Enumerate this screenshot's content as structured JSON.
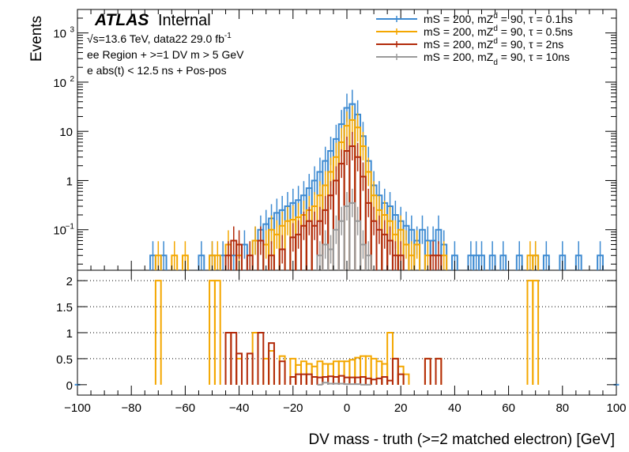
{
  "chart_data": [
    {
      "type": "line",
      "role": "top-panel",
      "ylabel": "Events",
      "yscale": "log",
      "ylim": [
        0.015,
        3000
      ],
      "y_ticks": [
        {
          "v": 0.1,
          "base": "10",
          "exp": "−1"
        },
        {
          "v": 1,
          "base": "1",
          "exp": ""
        },
        {
          "v": 10,
          "base": "10",
          "exp": ""
        },
        {
          "v": 100,
          "base": "10",
          "exp": "2"
        },
        {
          "v": 1000,
          "base": "10",
          "exp": "3"
        }
      ],
      "annotations": {
        "atlas": "ATLAS",
        "internal": "Internal",
        "energy_prefix": "√s=13.6 TeV, data22 29.0 fb",
        "energy_sup": "-1",
        "region": "ee Region + >=1 DV m > 5 GeV",
        "cut": "e abs(t) < 12.5 ns + Pos-pos"
      },
      "series": [
        {
          "name": "mS = 200, mZd = 90, τ = 0.1ns",
          "color": "#3d8ad1",
          "label_parts": [
            "mS = 200, mZ",
            "d",
            " = 90, τ = 0.1ns"
          ],
          "points": [
            [
              -72,
              0.03
            ],
            [
              -68,
              0.03
            ],
            [
              -54,
              0.03
            ],
            [
              -50,
              0.03
            ],
            [
              -46,
              0.03
            ],
            [
              -42,
              0.03
            ],
            [
              -38,
              0.05
            ],
            [
              -34,
              0.06
            ],
            [
              -32,
              0.1
            ],
            [
              -30,
              0.13
            ],
            [
              -28,
              0.17
            ],
            [
              -26,
              0.22
            ],
            [
              -24,
              0.25
            ],
            [
              -22,
              0.3
            ],
            [
              -20,
              0.35
            ],
            [
              -18,
              0.4
            ],
            [
              -16,
              0.5
            ],
            [
              -14,
              0.7
            ],
            [
              -12,
              1.0
            ],
            [
              -10,
              1.5
            ],
            [
              -8,
              2.5
            ],
            [
              -6,
              4
            ],
            [
              -4,
              7
            ],
            [
              -2,
              14
            ],
            [
              0,
              30
            ],
            [
              2,
              36
            ],
            [
              4,
              22
            ],
            [
              6,
              8
            ],
            [
              8,
              2.5
            ],
            [
              10,
              0.8
            ],
            [
              12,
              0.5
            ],
            [
              14,
              0.35
            ],
            [
              16,
              0.3
            ],
            [
              18,
              0.2
            ],
            [
              20,
              0.15
            ],
            [
              22,
              0.12
            ],
            [
              24,
              0.1
            ],
            [
              26,
              0.06
            ],
            [
              28,
              0.1
            ],
            [
              30,
              0.06
            ],
            [
              32,
              0.06
            ],
            [
              34,
              0.1
            ],
            [
              36,
              0.05
            ],
            [
              40,
              0.03
            ],
            [
              46,
              0.03
            ],
            [
              48,
              0.03
            ],
            [
              50,
              0.03
            ],
            [
              54,
              0.03
            ],
            [
              58,
              0.03
            ],
            [
              64,
              0.03
            ],
            [
              70,
              0.03
            ],
            [
              74,
              0.03
            ],
            [
              80,
              0.03
            ],
            [
              86,
              0.03
            ],
            [
              94,
              0.03
            ]
          ]
        },
        {
          "name": "mS = 200, mZd = 90, τ = 0.5ns",
          "color": "#f4a700",
          "label_parts": [
            "mS = 200, mZ",
            "d",
            " = 90, τ = 0.5ns"
          ],
          "points": [
            [
              -70,
              0.03
            ],
            [
              -64,
              0.03
            ],
            [
              -60,
              0.03
            ],
            [
              -50,
              0.03
            ],
            [
              -48,
              0.03
            ],
            [
              -44,
              0.05
            ],
            [
              -40,
              0.03
            ],
            [
              -34,
              0.06
            ],
            [
              -30,
              0.05
            ],
            [
              -28,
              0.1
            ],
            [
              -26,
              0.08
            ],
            [
              -24,
              0.12
            ],
            [
              -22,
              0.15
            ],
            [
              -20,
              0.16
            ],
            [
              -18,
              0.18
            ],
            [
              -16,
              0.2
            ],
            [
              -14,
              0.25
            ],
            [
              -12,
              0.3
            ],
            [
              -10,
              0.5
            ],
            [
              -8,
              0.8
            ],
            [
              -6,
              1.5
            ],
            [
              -4,
              3
            ],
            [
              -2,
              6
            ],
            [
              0,
              13
            ],
            [
              2,
              17
            ],
            [
              4,
              12
            ],
            [
              6,
              5
            ],
            [
              8,
              1.5
            ],
            [
              10,
              0.5
            ],
            [
              12,
              0.25
            ],
            [
              14,
              0.2
            ],
            [
              16,
              0.15
            ],
            [
              18,
              0.08
            ],
            [
              20,
              0.1
            ],
            [
              22,
              0.05
            ],
            [
              24,
              0.03
            ],
            [
              26,
              0.05
            ],
            [
              30,
              0.03
            ],
            [
              36,
              0.03
            ],
            [
              68,
              0.03
            ],
            [
              70,
              0.03
            ]
          ]
        },
        {
          "name": "mS = 200, mZd = 90, τ = 2ns",
          "color": "#b22a0a",
          "label_parts": [
            "mS = 200, mZ",
            "d",
            " = 90, τ = 2ns"
          ],
          "points": [
            [
              -44,
              0.03
            ],
            [
              -42,
              0.06
            ],
            [
              -40,
              0.05
            ],
            [
              -36,
              0.03
            ],
            [
              -32,
              0.06
            ],
            [
              -28,
              0.03
            ],
            [
              -24,
              0.04
            ],
            [
              -20,
              0.07
            ],
            [
              -18,
              0.08
            ],
            [
              -16,
              0.12
            ],
            [
              -14,
              0.15
            ],
            [
              -12,
              0.12
            ],
            [
              -10,
              0.15
            ],
            [
              -8,
              0.25
            ],
            [
              -6,
              0.5
            ],
            [
              -4,
              1.0
            ],
            [
              -2,
              2.2
            ],
            [
              0,
              4
            ],
            [
              2,
              5
            ],
            [
              4,
              3
            ],
            [
              6,
              1.2
            ],
            [
              8,
              0.35
            ],
            [
              10,
              0.15
            ],
            [
              12,
              0.1
            ],
            [
              14,
              0.08
            ],
            [
              16,
              0.06
            ],
            [
              18,
              0.03
            ],
            [
              20,
              0.03
            ],
            [
              32,
              0.03
            ],
            [
              34,
              0.03
            ]
          ]
        },
        {
          "name": "mS = 200, mZd = 90, τ = 10ns",
          "color": "#9a9a9a",
          "label_parts": [
            "mS = 200, mZ",
            "d",
            " = 90, τ = 10ns"
          ],
          "points": [
            [
              -10,
              0.03
            ],
            [
              -8,
              0.05
            ],
            [
              -6,
              0.04
            ],
            [
              -4,
              0.1
            ],
            [
              -2,
              0.15
            ],
            [
              0,
              0.3
            ],
            [
              2,
              0.35
            ],
            [
              4,
              0.15
            ],
            [
              6,
              0.05
            ],
            [
              8,
              0.03
            ]
          ]
        }
      ]
    },
    {
      "type": "line",
      "role": "ratio-panel",
      "ylim": [
        -0.2,
        2.2
      ],
      "y_ticks": [
        0,
        0.5,
        1,
        1.5,
        2
      ],
      "y_tick_labels": [
        "0",
        "0.5",
        "1",
        "1.5",
        "2"
      ],
      "grid_values": [
        0.5,
        1,
        1.5,
        2
      ],
      "xlim": [
        -100,
        100
      ],
      "x_ticks": [
        -100,
        -80,
        -60,
        -40,
        -20,
        0,
        20,
        40,
        60,
        80,
        100
      ],
      "x_tick_labels": [
        "−100",
        "−80",
        "−60",
        "−40",
        "−20",
        "0",
        "20",
        "40",
        "60",
        "80",
        "100"
      ],
      "xlabel": "DV mass - truth (>=2 matched electron) [GeV]",
      "series": [
        {
          "name": "ratio 0.1ns",
          "color": "#3d8ad1",
          "points": [
            [
              -100,
              0
            ],
            [
              100,
              0
            ]
          ]
        },
        {
          "name": "ratio 0.5ns",
          "color": "#f4a700",
          "points": [
            [
              -70,
              2
            ],
            [
              -50,
              2
            ],
            [
              -48,
              2
            ],
            [
              -44,
              1
            ],
            [
              -40,
              0.5
            ],
            [
              -34,
              1
            ],
            [
              -30,
              0.5
            ],
            [
              -28,
              0.65
            ],
            [
              -24,
              0.55
            ],
            [
              -20,
              0.5
            ],
            [
              -18,
              0.38
            ],
            [
              -16,
              0.45
            ],
            [
              -14,
              0.4
            ],
            [
              -12,
              0.35
            ],
            [
              -10,
              0.45
            ],
            [
              -8,
              0.4
            ],
            [
              -6,
              0.4
            ],
            [
              -4,
              0.45
            ],
            [
              -2,
              0.45
            ],
            [
              0,
              0.45
            ],
            [
              2,
              0.48
            ],
            [
              4,
              0.52
            ],
            [
              6,
              0.55
            ],
            [
              8,
              0.55
            ],
            [
              10,
              0.5
            ],
            [
              12,
              0.45
            ],
            [
              14,
              0.4
            ],
            [
              16,
              1
            ],
            [
              18,
              0.5
            ],
            [
              20,
              0.35
            ],
            [
              22,
              0.2
            ],
            [
              30,
              0.5
            ],
            [
              34,
              0.5
            ],
            [
              68,
              2
            ],
            [
              70,
              2
            ]
          ]
        },
        {
          "name": "ratio 2ns",
          "color": "#b22a0a",
          "points": [
            [
              -44,
              1
            ],
            [
              -42,
              1
            ],
            [
              -40,
              0.6
            ],
            [
              -36,
              0.6
            ],
            [
              -32,
              1
            ],
            [
              -28,
              0.8
            ],
            [
              -24,
              0.45
            ],
            [
              -20,
              0.15
            ],
            [
              -18,
              0.2
            ],
            [
              -16,
              0.2
            ],
            [
              -14,
              0.2
            ],
            [
              -12,
              0.15
            ],
            [
              -10,
              0.14
            ],
            [
              -8,
              0.15
            ],
            [
              -6,
              0.16
            ],
            [
              -4,
              0.15
            ],
            [
              -2,
              0.17
            ],
            [
              0,
              0.14
            ],
            [
              2,
              0.14
            ],
            [
              4,
              0.14
            ],
            [
              6,
              0.15
            ],
            [
              8,
              0.12
            ],
            [
              10,
              0.1
            ],
            [
              12,
              0.12
            ],
            [
              14,
              0.15
            ],
            [
              16,
              0.08
            ],
            [
              18,
              0.5
            ],
            [
              20,
              0.2
            ],
            [
              30,
              0.5
            ],
            [
              34,
              0.5
            ]
          ]
        },
        {
          "name": "ratio 10ns",
          "color": "#9a9a9a",
          "points": [
            [
              -10,
              0
            ],
            [
              -8,
              0.04
            ],
            [
              -6,
              0.02
            ],
            [
              -4,
              0.02
            ],
            [
              -2,
              0.02
            ],
            [
              0,
              0.01
            ],
            [
              2,
              0.01
            ],
            [
              4,
              0.01
            ],
            [
              6,
              0
            ],
            [
              8,
              0
            ]
          ]
        }
      ]
    }
  ]
}
